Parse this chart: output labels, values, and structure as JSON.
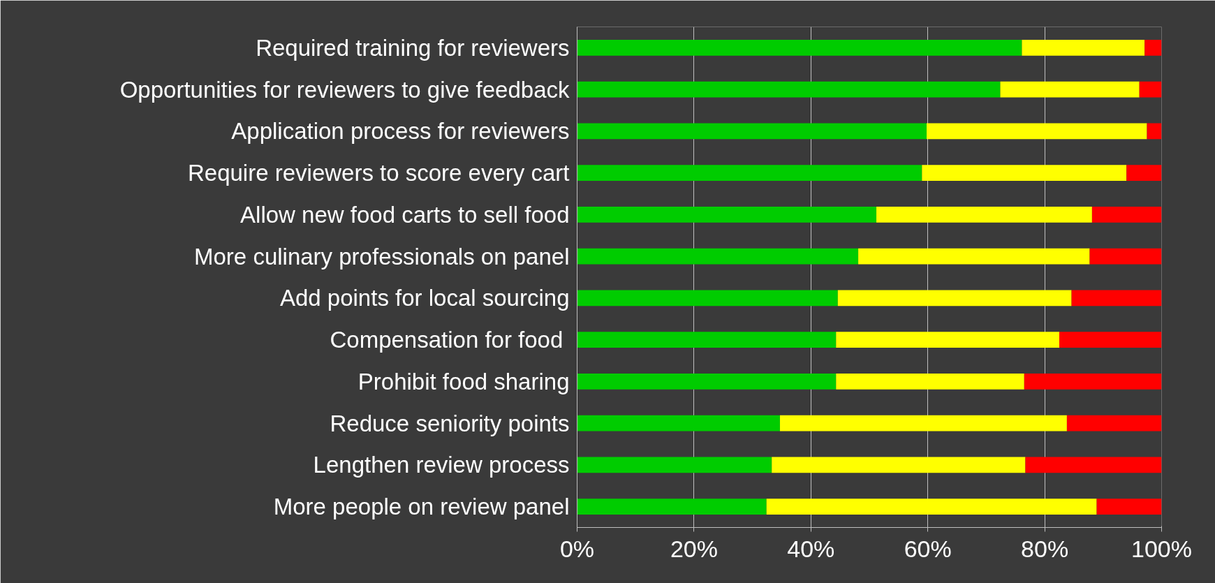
{
  "chart_data": {
    "type": "bar",
    "orientation": "horizontal",
    "stacked": true,
    "categories": [
      "Required training for reviewers",
      "Opportunities for reviewers to give feedback",
      "Application process for reviewers",
      "Require reviewers to score every cart",
      "Allow new food carts to sell food",
      "More culinary professionals on panel",
      "Add points for local sourcing",
      "Compensation for food ",
      "Prohibit food sharing",
      "Reduce seniority points",
      "Lengthen review process",
      "More people on review panel"
    ],
    "series": [
      {
        "color": "#00cc00",
        "values": [
          76.1,
          72.4,
          59.8,
          59.0,
          51.2,
          48.1,
          44.6,
          44.3,
          44.3,
          34.7,
          33.3,
          32.4
        ]
      },
      {
        "color": "#ffff00",
        "values": [
          21.0,
          23.8,
          37.7,
          35.0,
          36.9,
          39.6,
          40.0,
          38.2,
          32.2,
          49.1,
          43.4,
          56.5
        ]
      },
      {
        "color": "#ff0000",
        "values": [
          2.9,
          3.8,
          2.5,
          6.0,
          11.9,
          12.3,
          15.4,
          17.5,
          23.5,
          16.2,
          23.3,
          11.1
        ]
      }
    ],
    "xlim": [
      0,
      100
    ],
    "xticks": [
      {
        "value": 0,
        "label": "0%"
      },
      {
        "value": 20,
        "label": "20%"
      },
      {
        "value": 40,
        "label": "40%"
      },
      {
        "value": 60,
        "label": "60%"
      },
      {
        "value": 80,
        "label": "80%"
      },
      {
        "value": 100,
        "label": "100%"
      }
    ],
    "grid": "x"
  }
}
